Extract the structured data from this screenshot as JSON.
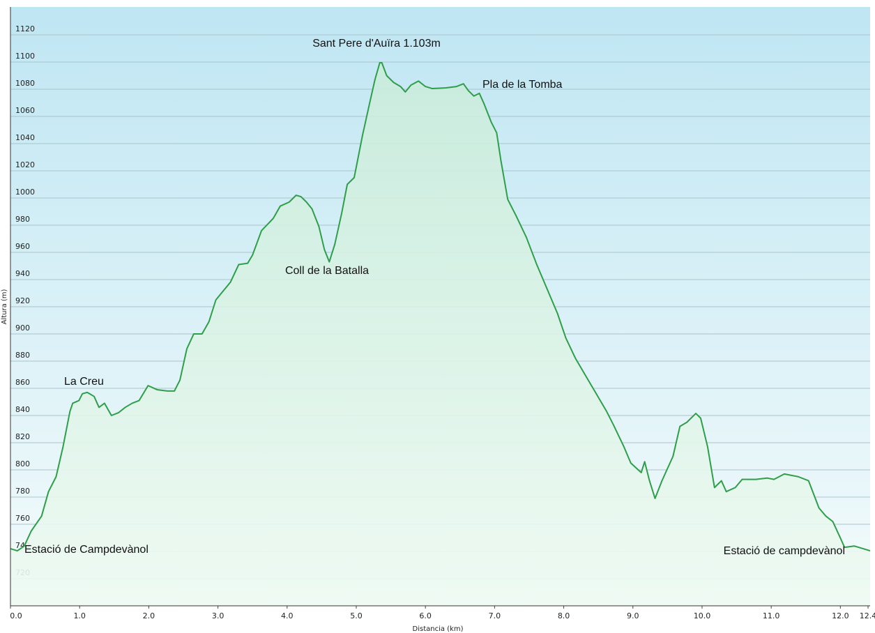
{
  "chart_data": {
    "type": "area",
    "x_label": "Distancia  (km)",
    "y_label": "Altura (m)",
    "annotations": [
      "Sant Pere d'Auïra 1.103m",
      "Pla de la Tomba",
      "La Creu",
      "Coll de la Batalla",
      "Estació de Campdevànol",
      "Estació de campdevànol"
    ],
    "color": "#2e9e4a",
    "grid": true,
    "xlim": [
      0,
      12.43
    ],
    "ylim": [
      700,
      1140
    ],
    "xticks": [
      {
        "value": 0,
        "label": "0.0"
      },
      {
        "value": 1,
        "label": "1.0"
      },
      {
        "value": 2,
        "label": "2.0"
      },
      {
        "value": 3,
        "label": "3.0"
      },
      {
        "value": 4,
        "label": "4.0"
      },
      {
        "value": 5,
        "label": "5.0"
      },
      {
        "value": 6,
        "label": "6.0"
      },
      {
        "value": 7,
        "label": "7.0"
      },
      {
        "value": 8,
        "label": "8.0"
      },
      {
        "value": 9,
        "label": "9.0"
      },
      {
        "value": 10,
        "label": "10.0"
      },
      {
        "value": 11,
        "label": "11.0"
      },
      {
        "value": 12,
        "label": "12.0"
      },
      12.4
    ],
    "yticks": [
      720,
      740,
      760,
      780,
      800,
      820,
      840,
      860,
      880,
      900,
      920,
      940,
      960,
      980,
      1000,
      1020,
      1040,
      1060,
      1080,
      1100,
      1120
    ],
    "x": [
      0,
      0.1,
      0.2,
      0.3,
      0.45,
      0.55,
      0.66,
      0.76,
      0.86,
      0.9,
      0.99,
      1.04,
      1.11,
      1.21,
      1.28,
      1.36,
      1.46,
      1.56,
      1.66,
      1.76,
      1.86,
      1.99,
      2.12,
      2.27,
      2.37,
      2.45,
      2.55,
      2.65,
      2.77,
      2.87,
      2.97,
      3.05,
      3.18,
      3.3,
      3.43,
      3.5,
      3.63,
      3.8,
      3.9,
      4.03,
      4.13,
      4.2,
      4.28,
      4.36,
      4.46,
      4.54,
      4.61,
      4.69,
      4.79,
      4.87,
      4.97,
      5.09,
      5.19,
      5.27,
      5.34,
      5.37,
      5.44,
      5.54,
      5.64,
      5.71,
      5.79,
      5.9,
      6.0,
      6.1,
      6.3,
      6.45,
      6.55,
      6.62,
      6.7,
      6.78,
      6.85,
      6.95,
      7.03,
      7.09,
      7.19,
      7.31,
      7.46,
      7.61,
      7.76,
      7.91,
      8.03,
      8.17,
      8.32,
      8.47,
      8.62,
      8.72,
      8.87,
      8.97,
      9.12,
      9.17,
      9.24,
      9.32,
      9.42,
      9.58,
      9.68,
      9.78,
      9.91,
      9.98,
      10.08,
      10.18,
      10.28,
      10.35,
      10.48,
      10.58,
      10.78,
      10.94,
      11.04,
      11.19,
      11.39,
      11.54,
      11.69,
      11.79,
      11.89,
      11.99,
      12.06,
      12.2,
      12.43
    ],
    "values": [
      742,
      740.5,
      744,
      755,
      766,
      784,
      795,
      817,
      843,
      849,
      851,
      856,
      857,
      854,
      846,
      849,
      840,
      842,
      846,
      849,
      851,
      862,
      859,
      858,
      858,
      866,
      889,
      900,
      900,
      909,
      925,
      930,
      938,
      951,
      952,
      958,
      976,
      985,
      994,
      997,
      1002,
      1001,
      997,
      992,
      979,
      962,
      953,
      966,
      989,
      1010,
      1015,
      1046,
      1069,
      1087,
      1099.5,
      1099.5,
      1090,
      1085,
      1082,
      1078,
      1083,
      1086,
      1082,
      1080.5,
      1081,
      1082,
      1084,
      1079,
      1075,
      1077,
      1069,
      1056,
      1048,
      1028,
      999,
      987,
      971,
      951,
      933,
      915,
      897,
      882,
      869,
      856,
      843,
      833,
      817,
      805,
      798,
      806,
      792,
      779,
      792,
      810,
      832,
      835,
      841.5,
      838,
      817,
      787,
      792,
      784,
      787,
      793,
      793,
      794,
      793,
      797,
      795,
      792,
      772,
      766,
      762,
      751,
      743,
      744,
      740.5
    ]
  }
}
